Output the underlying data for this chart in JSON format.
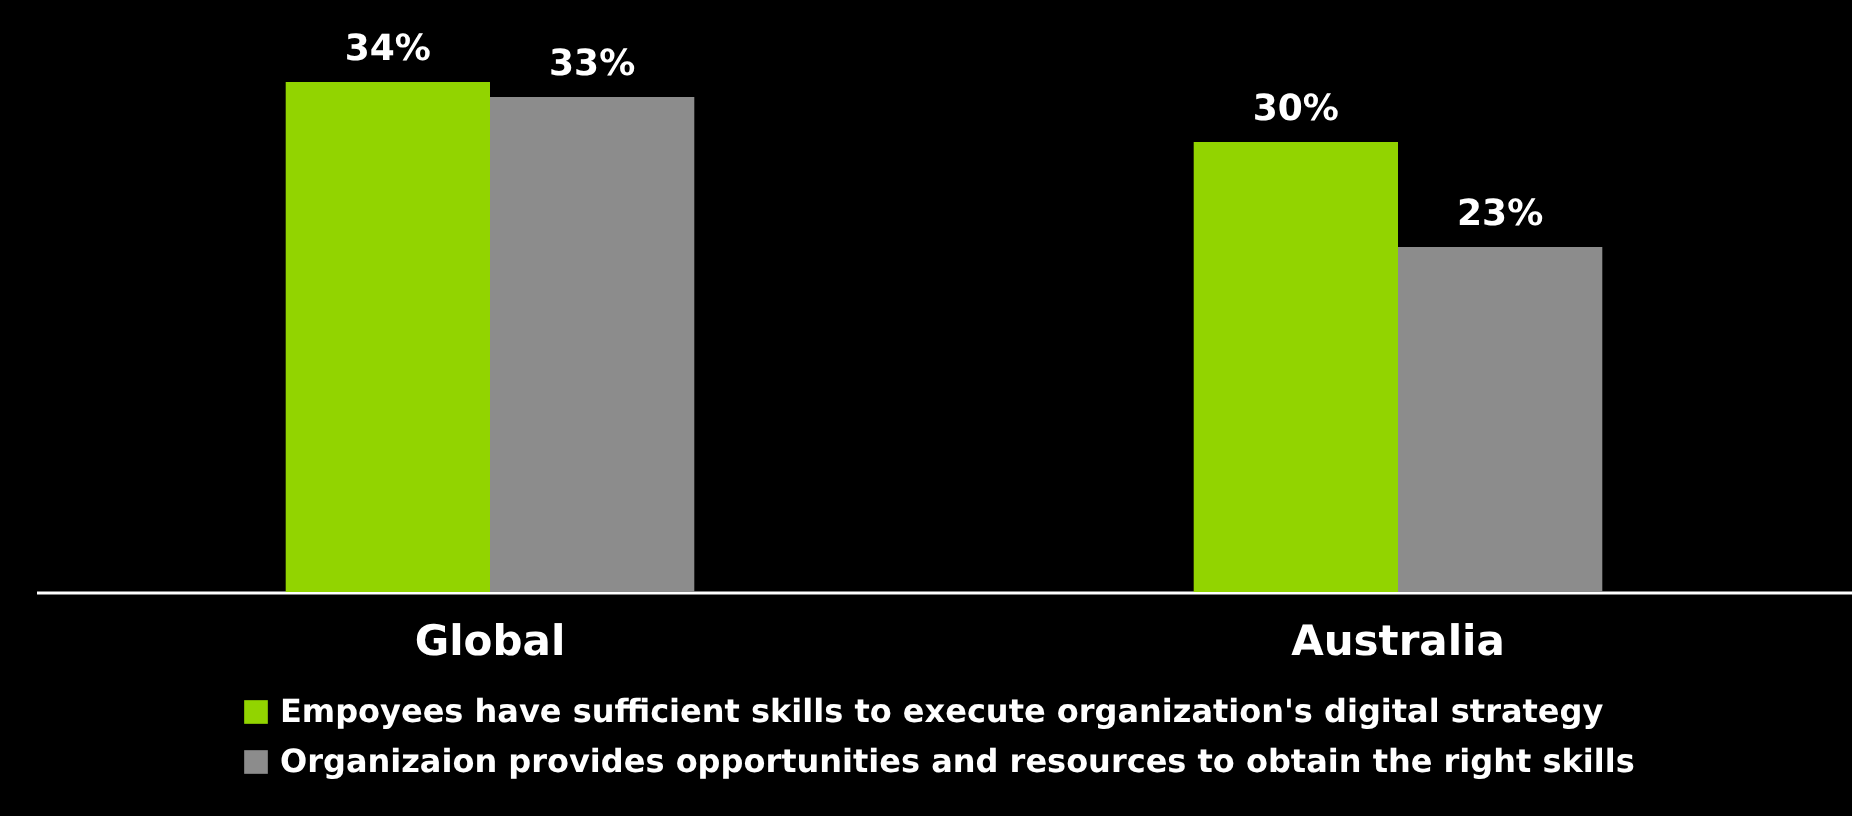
{
  "chart_data": {
    "type": "bar",
    "categories": [
      "Global",
      "Australia"
    ],
    "series": [
      {
        "name": "Empoyees have sufficient skills to execute organization's digital strategy",
        "color": "#92d400",
        "values": [
          34,
          30
        ],
        "value_labels": [
          "34%",
          "30%"
        ]
      },
      {
        "name": "Organizaion provides opportunities and resources to obtain the right skills",
        "color": "#8c8c8c",
        "values": [
          33,
          23
        ],
        "value_labels": [
          "33%",
          "23%"
        ]
      }
    ],
    "legend": "bottom",
    "grid": false,
    "tick_labels": "x"
  }
}
